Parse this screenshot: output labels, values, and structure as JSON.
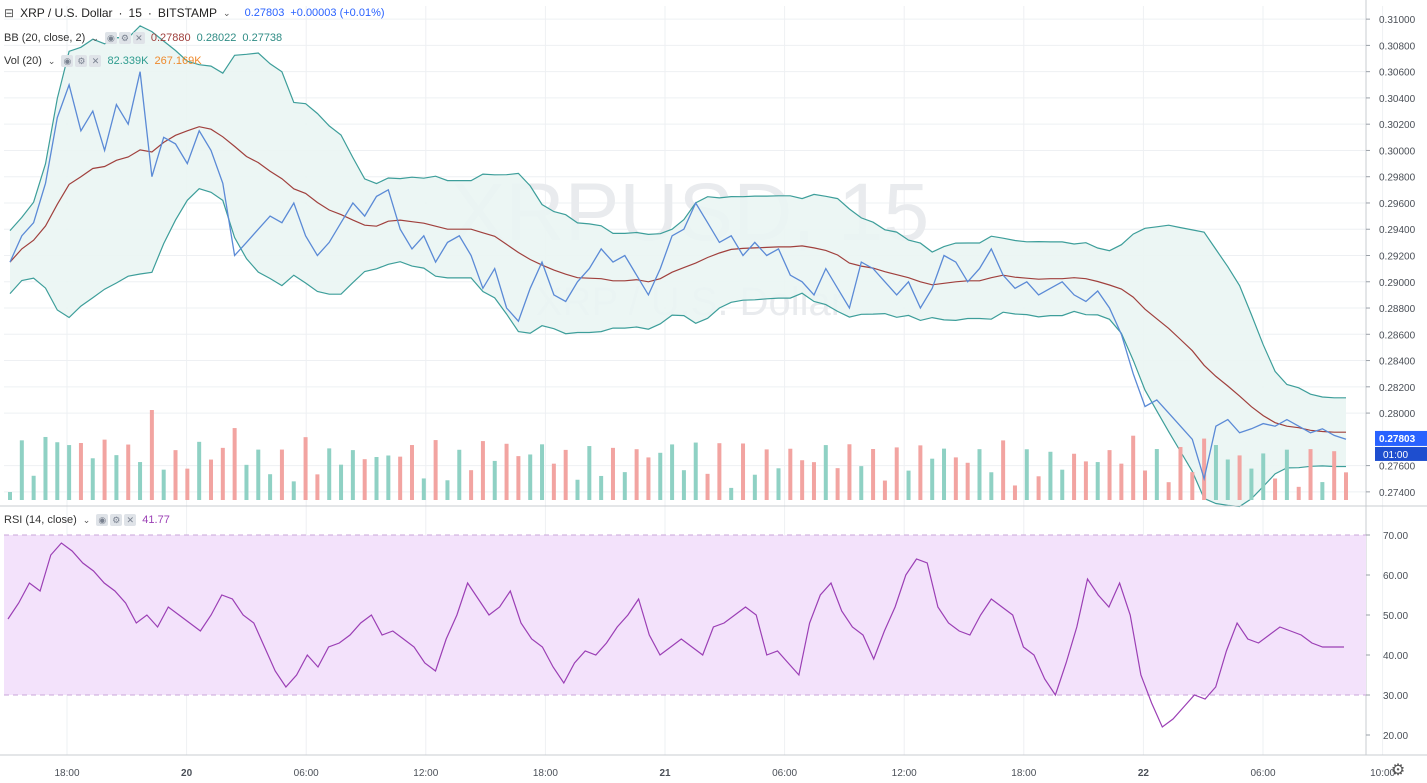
{
  "header": {
    "symbol": "XRP / U.S. Dollar",
    "interval": "15",
    "exchange": "BITSTAMP",
    "last": "0.27803",
    "change": "+0.00003 (+0.01%)"
  },
  "bb": {
    "label": "BB (20, close, 2)",
    "v1": "0.27880",
    "v2": "0.28022",
    "v3": "0.27738"
  },
  "vol": {
    "label": "Vol (20)",
    "v1": "82.339K",
    "v2": "267.169K"
  },
  "rsi": {
    "label": "RSI (14, close)",
    "value": "41.77"
  },
  "watermark": {
    "main": "XRPUSD, 15",
    "sub": "XRP / U.S. Dollar"
  },
  "price_label": "0.27803",
  "countdown": "01:00",
  "colors": {
    "price": "#5b8ad6",
    "bb_band": "#3d9e9a",
    "bb_basis": "#a0403d",
    "bb_fill": "#eaf5f3",
    "vol_up": "#8fd1c4",
    "vol_down": "#f2a4a1",
    "rsi": "#9b3fb5",
    "rsi_fill": "#f3e2fb",
    "label_bg": "#2962ff"
  },
  "chart_data": [
    {
      "type": "line",
      "series": [
        {
          "name": "XRP / U.S. Dollar",
          "values": [
            0.2915,
            0.2935,
            0.2945,
            0.2975,
            0.3025,
            0.305,
            0.3015,
            0.303,
            0.3,
            0.3035,
            0.302,
            0.306,
            0.298,
            0.301,
            0.3005,
            0.299,
            0.3015,
            0.3,
            0.2975,
            0.292,
            0.293,
            0.294,
            0.295,
            0.2945,
            0.296,
            0.2935,
            0.292,
            0.293,
            0.2945,
            0.296,
            0.295,
            0.2965,
            0.297,
            0.294,
            0.2925,
            0.2935,
            0.2915,
            0.293,
            0.2935,
            0.292,
            0.2895,
            0.291,
            0.288,
            0.287,
            0.2895,
            0.2915,
            0.289,
            0.2885,
            0.29,
            0.291,
            0.2925,
            0.2915,
            0.292,
            0.2905,
            0.289,
            0.291,
            0.2935,
            0.294,
            0.296,
            0.2945,
            0.293,
            0.2935,
            0.292,
            0.293,
            0.292,
            0.2925,
            0.2905,
            0.29,
            0.289,
            0.291,
            0.2895,
            0.288,
            0.2915,
            0.291,
            0.29,
            0.289,
            0.29,
            0.288,
            0.2895,
            0.292,
            0.2915,
            0.29,
            0.291,
            0.2925,
            0.2905,
            0.2895,
            0.29,
            0.289,
            0.2895,
            0.29,
            0.289,
            0.2885,
            0.2893,
            0.288,
            0.286,
            0.283,
            0.2805,
            0.281,
            0.28,
            0.279,
            0.278,
            0.275,
            0.279,
            0.2795,
            0.2785,
            0.2788,
            0.2792,
            0.279,
            0.2795,
            0.279,
            0.2785,
            0.2788,
            0.2783,
            0.278
          ],
          "ref": "price"
        }
      ],
      "ylim": [
        0.273,
        0.311
      ],
      "y_ticks": [
        "0.31000",
        "0.30800",
        "0.30600",
        "0.30400",
        "0.30200",
        "0.30000",
        "0.29800",
        "0.29600",
        "0.29400",
        "0.29200",
        "0.29000",
        "0.28800",
        "0.28600",
        "0.28400",
        "0.28200",
        "0.28000",
        "0.27600",
        "0.27400"
      ],
      "x_ticks": [
        "18:00",
        "20",
        "06:00",
        "12:00",
        "18:00",
        "21",
        "06:00",
        "12:00",
        "18:00",
        "22",
        "06:00",
        "10:00"
      ]
    },
    {
      "type": "area",
      "series": [
        {
          "name": "RSI (14, close)",
          "values": [
            49,
            53,
            58,
            56,
            65,
            68,
            66,
            63,
            61,
            58,
            56,
            53,
            48,
            50,
            47,
            52,
            50,
            48,
            46,
            50,
            55,
            54,
            50,
            48,
            42,
            36,
            32,
            35,
            40,
            37,
            42,
            43,
            45,
            48,
            50,
            45,
            46,
            44,
            42,
            38,
            36,
            44,
            50,
            58,
            54,
            50,
            52,
            56,
            48,
            44,
            42,
            37,
            33,
            38,
            41,
            40,
            43,
            47,
            50,
            54,
            45,
            40,
            42,
            44,
            42,
            40,
            47,
            48,
            50,
            52,
            50,
            40,
            41,
            38,
            35,
            48,
            55,
            58,
            51,
            47,
            45,
            39,
            46,
            52,
            60,
            64,
            63,
            52,
            48,
            46,
            45,
            50,
            54,
            52,
            50,
            42,
            40,
            34,
            30,
            38,
            47,
            59,
            55,
            52,
            58,
            50,
            35,
            28,
            22,
            24,
            27,
            30,
            29,
            32,
            41,
            48,
            44,
            43,
            45,
            47,
            46,
            45,
            43,
            42,
            42,
            42
          ]
        }
      ],
      "ylim": [
        15,
        77
      ],
      "y_ticks": [
        "70.00",
        "60.00",
        "50.00",
        "40.00",
        "30.00",
        "20.00"
      ],
      "band": [
        30,
        70
      ]
    }
  ]
}
